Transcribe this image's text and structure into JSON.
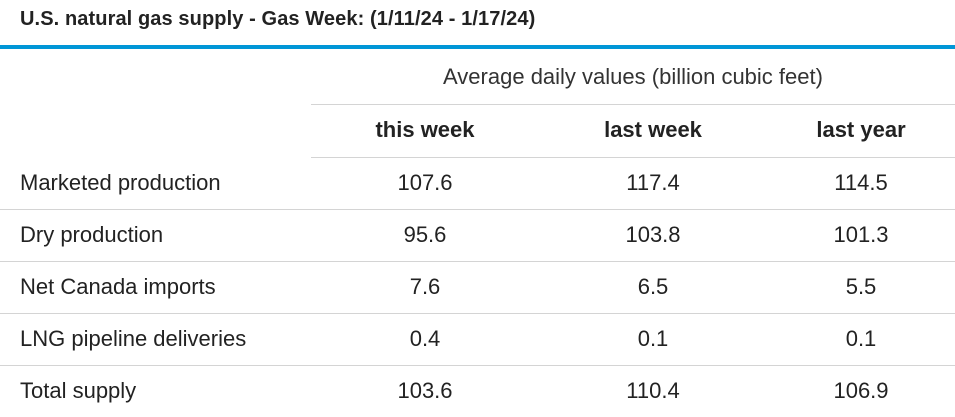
{
  "title": "U.S. natural gas supply - Gas Week: (1/11/24 - 1/17/24)",
  "table": {
    "group_header": "Average daily values (billion cubic feet)",
    "columns": [
      "this week",
      "last week",
      "last year"
    ],
    "rows": [
      {
        "label": "Marketed production",
        "values": [
          "107.6",
          "117.4",
          "114.5"
        ]
      },
      {
        "label": "Dry production",
        "values": [
          "95.6",
          "103.8",
          "101.3"
        ]
      },
      {
        "label": "Net Canada imports",
        "values": [
          "7.6",
          "6.5",
          "5.5"
        ]
      },
      {
        "label": "LNG pipeline deliveries",
        "values": [
          "0.4",
          "0.1",
          "0.1"
        ]
      },
      {
        "label": "Total supply",
        "values": [
          "103.6",
          "110.4",
          "106.9"
        ]
      }
    ]
  },
  "colors": {
    "accent_rule": "#0096d7",
    "row_divider": "#d4d4d4",
    "text": "#222222"
  }
}
